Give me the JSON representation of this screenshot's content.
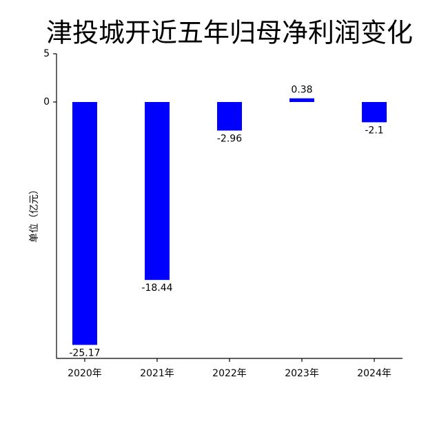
{
  "chart_data": {
    "type": "bar",
    "title": "津投城开近五年归母净利润变化",
    "y_label": "单位（亿元）",
    "categories": [
      "2020年",
      "2021年",
      "2022年",
      "2023年",
      "2024年"
    ],
    "values": [
      -25.17,
      -18.44,
      -2.96,
      0.38,
      -2.1
    ],
    "color": "#0000ff",
    "ylim": [
      -26.57,
      5
    ],
    "yticks": [
      5,
      0
    ],
    "grid": false
  }
}
